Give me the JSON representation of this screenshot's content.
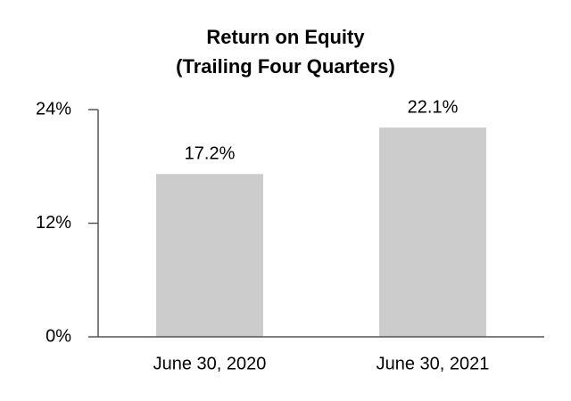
{
  "chart_data": {
    "type": "bar",
    "title": "Return on Equity",
    "subtitle": "(Trailing Four Quarters)",
    "categories": [
      "June 30, 2020",
      "June 30, 2021"
    ],
    "values": [
      17.2,
      22.1
    ],
    "value_labels": [
      "17.2%",
      "22.1%"
    ],
    "color": "#cccccc",
    "ylim": [
      0,
      24
    ],
    "yticks": [
      {
        "value": 0,
        "label": "0%"
      },
      {
        "value": 12,
        "label": "12%"
      },
      {
        "value": 24,
        "label": "24%"
      }
    ],
    "grid": false
  }
}
